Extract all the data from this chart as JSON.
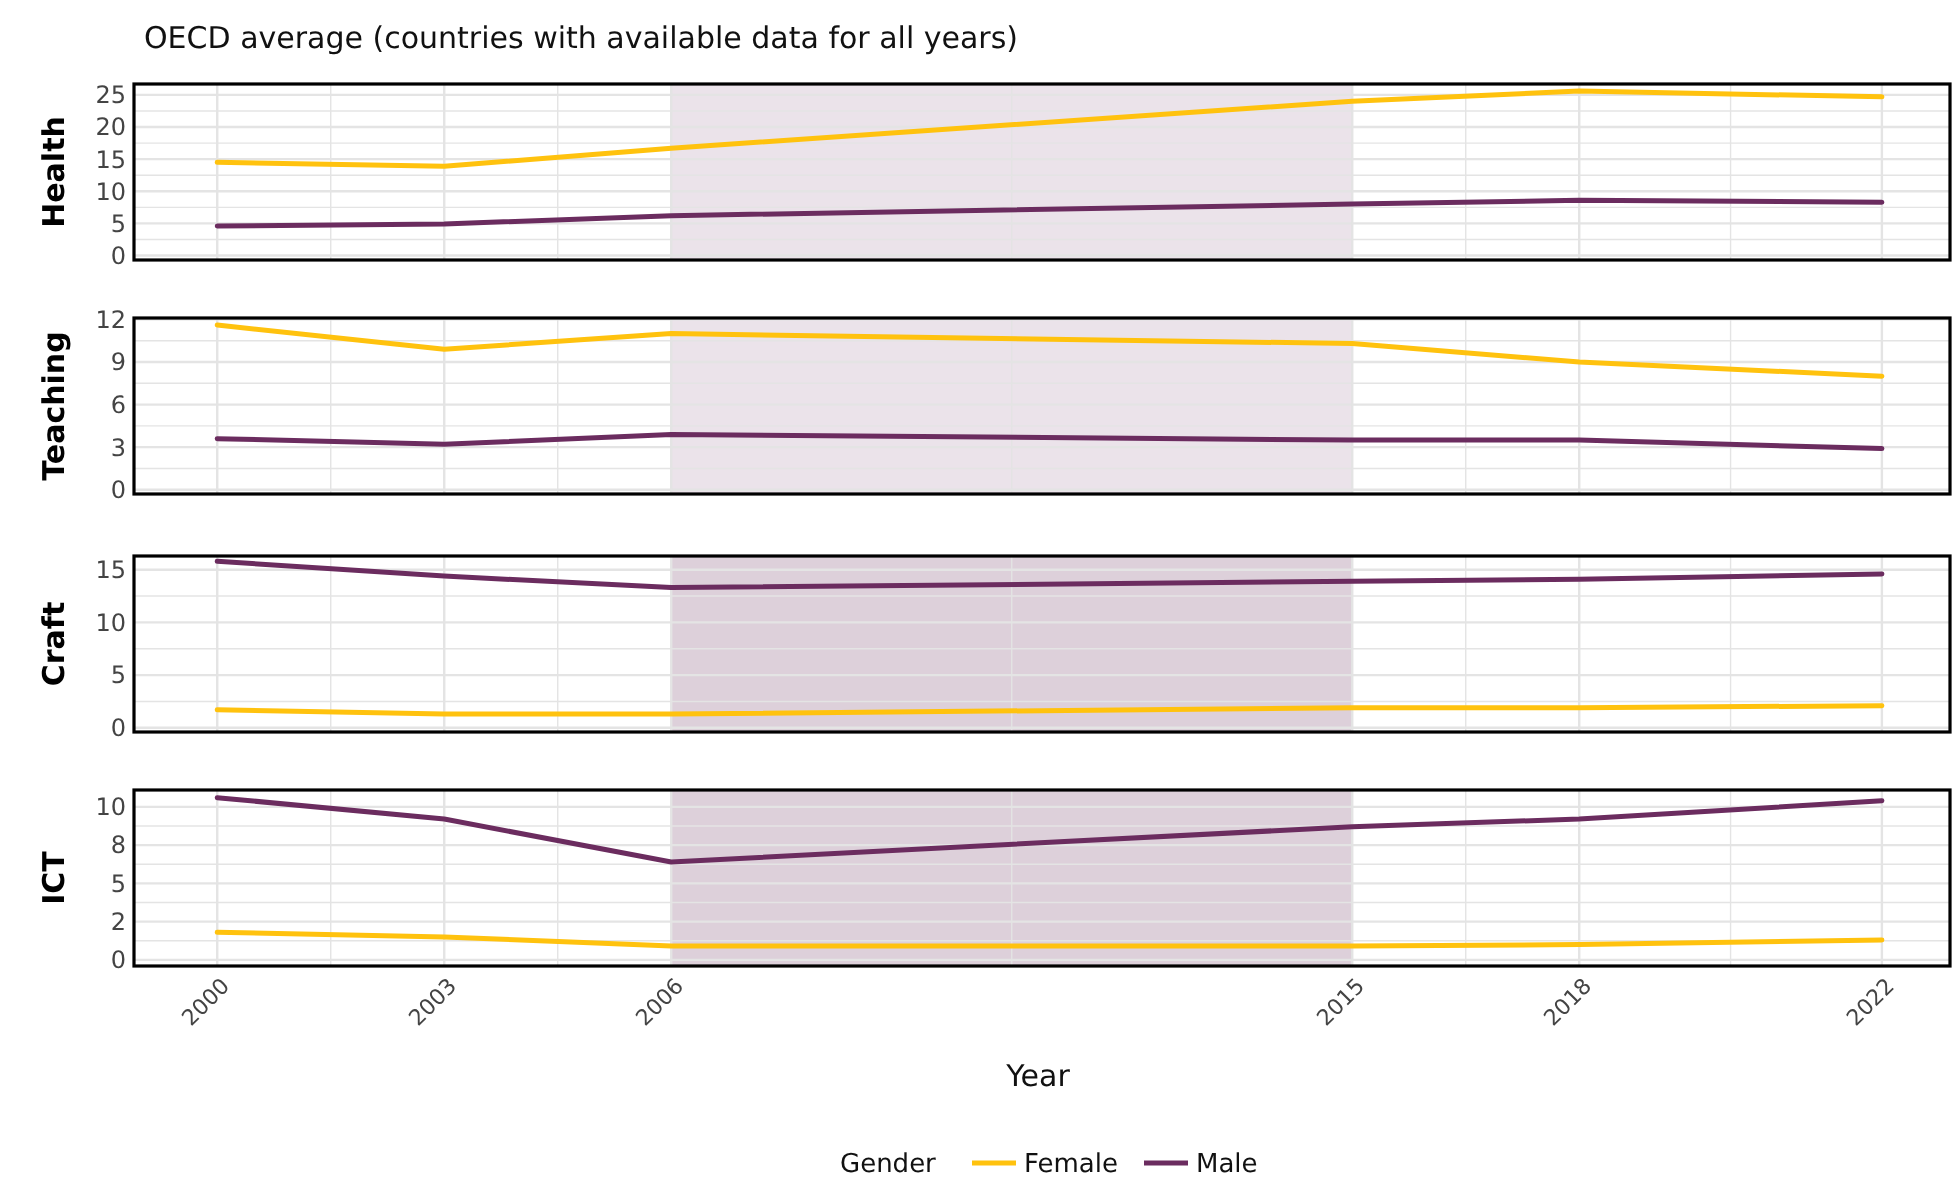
{
  "chart_data": [
    {
      "type": "line",
      "title": "OECD average (countries with available data for all years)",
      "ylabel": "Health",
      "x": [
        2000,
        2003,
        2006,
        2015,
        2018,
        2022
      ],
      "xlim": [
        1998.9,
        2022.9
      ],
      "xticks": [
        2000,
        {
          "value": 2001.5,
          "label": null
        },
        2003,
        {
          "value": 2004.5,
          "label": null
        },
        2006,
        {
          "value": 2010.5,
          "label": null
        },
        2015,
        {
          "value": 2016.5,
          "label": null
        },
        2018,
        {
          "value": 2020,
          "label": null
        },
        2022
      ],
      "ylim": [
        -0.7,
        26.7
      ],
      "yticks": [
        0,
        {
          "value": 2.5,
          "label": null
        },
        5,
        {
          "value": 7.5,
          "label": null
        },
        10,
        {
          "value": 12.5,
          "label": null
        },
        15,
        {
          "value": 17.5,
          "label": null
        },
        20,
        {
          "value": 22.5,
          "label": null
        },
        25
      ],
      "grid": true,
      "tick_labels": "y",
      "bands": [
        {
          "axis": "x",
          "from": 2006,
          "to": 2015,
          "color": "#ebe3ea"
        }
      ],
      "series": [
        {
          "color": "#ffc20e",
          "values": [
            14.5,
            13.9,
            16.7,
            24.0,
            25.6,
            24.7
          ]
        },
        {
          "color": "#6b2c5f",
          "values": [
            4.6,
            4.9,
            6.2,
            8.0,
            8.6,
            8.3
          ]
        }
      ]
    },
    {
      "type": "line",
      "ylabel": "Teaching",
      "x": [
        2000,
        2003,
        2006,
        2015,
        2018,
        2022
      ],
      "xlim": [
        1998.9,
        2022.9
      ],
      "xticks": [
        2000,
        {
          "value": 2001.5,
          "label": null
        },
        2003,
        {
          "value": 2004.5,
          "label": null
        },
        2006,
        {
          "value": 2010.5,
          "label": null
        },
        2015,
        {
          "value": 2016.5,
          "label": null
        },
        2018,
        {
          "value": 2020,
          "label": null
        },
        2022
      ],
      "ylim": [
        -0.3,
        12.1
      ],
      "yticks": [
        0,
        {
          "value": 1.5,
          "label": null
        },
        3,
        {
          "value": 4.5,
          "label": null
        },
        6,
        {
          "value": 7.5,
          "label": null
        },
        9,
        {
          "value": 10.5,
          "label": null
        },
        12
      ],
      "grid": true,
      "tick_labels": "y",
      "bands": [
        {
          "axis": "x",
          "from": 2006,
          "to": 2015,
          "color": "#ebe3ea"
        }
      ],
      "series": [
        {
          "color": "#ffc20e",
          "values": [
            11.6,
            9.9,
            11.0,
            10.3,
            9.0,
            8.0
          ]
        },
        {
          "color": "#6b2c5f",
          "values": [
            3.6,
            3.2,
            3.9,
            3.5,
            3.5,
            2.9
          ]
        }
      ]
    },
    {
      "type": "line",
      "ylabel": "Craft",
      "x": [
        2000,
        2003,
        2006,
        2015,
        2018,
        2022
      ],
      "xlim": [
        1998.9,
        2022.9
      ],
      "xticks": [
        2000,
        {
          "value": 2001.5,
          "label": null
        },
        2003,
        {
          "value": 2004.5,
          "label": null
        },
        2006,
        {
          "value": 2010.5,
          "label": null
        },
        2015,
        {
          "value": 2016.5,
          "label": null
        },
        2018,
        {
          "value": 2020,
          "label": null
        },
        2022
      ],
      "ylim": [
        -0.4,
        16.3
      ],
      "yticks": [
        0,
        {
          "value": 2.5,
          "label": null
        },
        5,
        {
          "value": 7.5,
          "label": null
        },
        10,
        {
          "value": 12.5,
          "label": null
        },
        15
      ],
      "grid": true,
      "tick_labels": "y",
      "bands": [
        {
          "axis": "x",
          "from": 2006,
          "to": 2015,
          "color": "#ddd0da"
        }
      ],
      "series": [
        {
          "color": "#ffc20e",
          "values": [
            1.7,
            1.3,
            1.3,
            1.9,
            1.9,
            2.1
          ]
        },
        {
          "color": "#6b2c5f",
          "values": [
            15.8,
            14.4,
            13.3,
            13.9,
            14.1,
            14.6
          ]
        }
      ]
    },
    {
      "type": "line",
      "ylabel": "ICT",
      "xlabel": "Year",
      "legend_title": "Gender",
      "legend": "bottom",
      "x": [
        2000,
        2003,
        2006,
        2015,
        2018,
        2022
      ],
      "xlim": [
        1998.9,
        2022.9
      ],
      "xticks": [
        2000,
        {
          "value": 2001.5,
          "label": null
        },
        2003,
        {
          "value": 2004.5,
          "label": null
        },
        2006,
        {
          "value": 2010.5,
          "label": null
        },
        2015,
        {
          "value": 2016.5,
          "label": null
        },
        2018,
        {
          "value": 2020,
          "label": null
        },
        2022
      ],
      "ylim": [
        -0.4,
        11.1
      ],
      "yticks": [
        0,
        {
          "value": 1.25,
          "label": null
        },
        {
          "value": 2.5,
          "label": "2"
        },
        {
          "value": 3.75,
          "label": null
        },
        5,
        {
          "value": 6.25,
          "label": null
        },
        {
          "value": 7.5,
          "label": "8"
        },
        {
          "value": 8.75,
          "label": null
        },
        10
      ],
      "grid": true,
      "bands": [
        {
          "axis": "x",
          "from": 2006,
          "to": 2015,
          "color": "#ddd0da"
        }
      ],
      "series": [
        {
          "name": "Female",
          "color": "#ffc20e",
          "values": [
            1.8,
            1.5,
            0.9,
            0.9,
            1.0,
            1.3
          ]
        },
        {
          "name": "Male",
          "color": "#6b2c5f",
          "values": [
            10.6,
            9.2,
            6.4,
            8.7,
            9.2,
            10.4
          ]
        }
      ]
    }
  ]
}
